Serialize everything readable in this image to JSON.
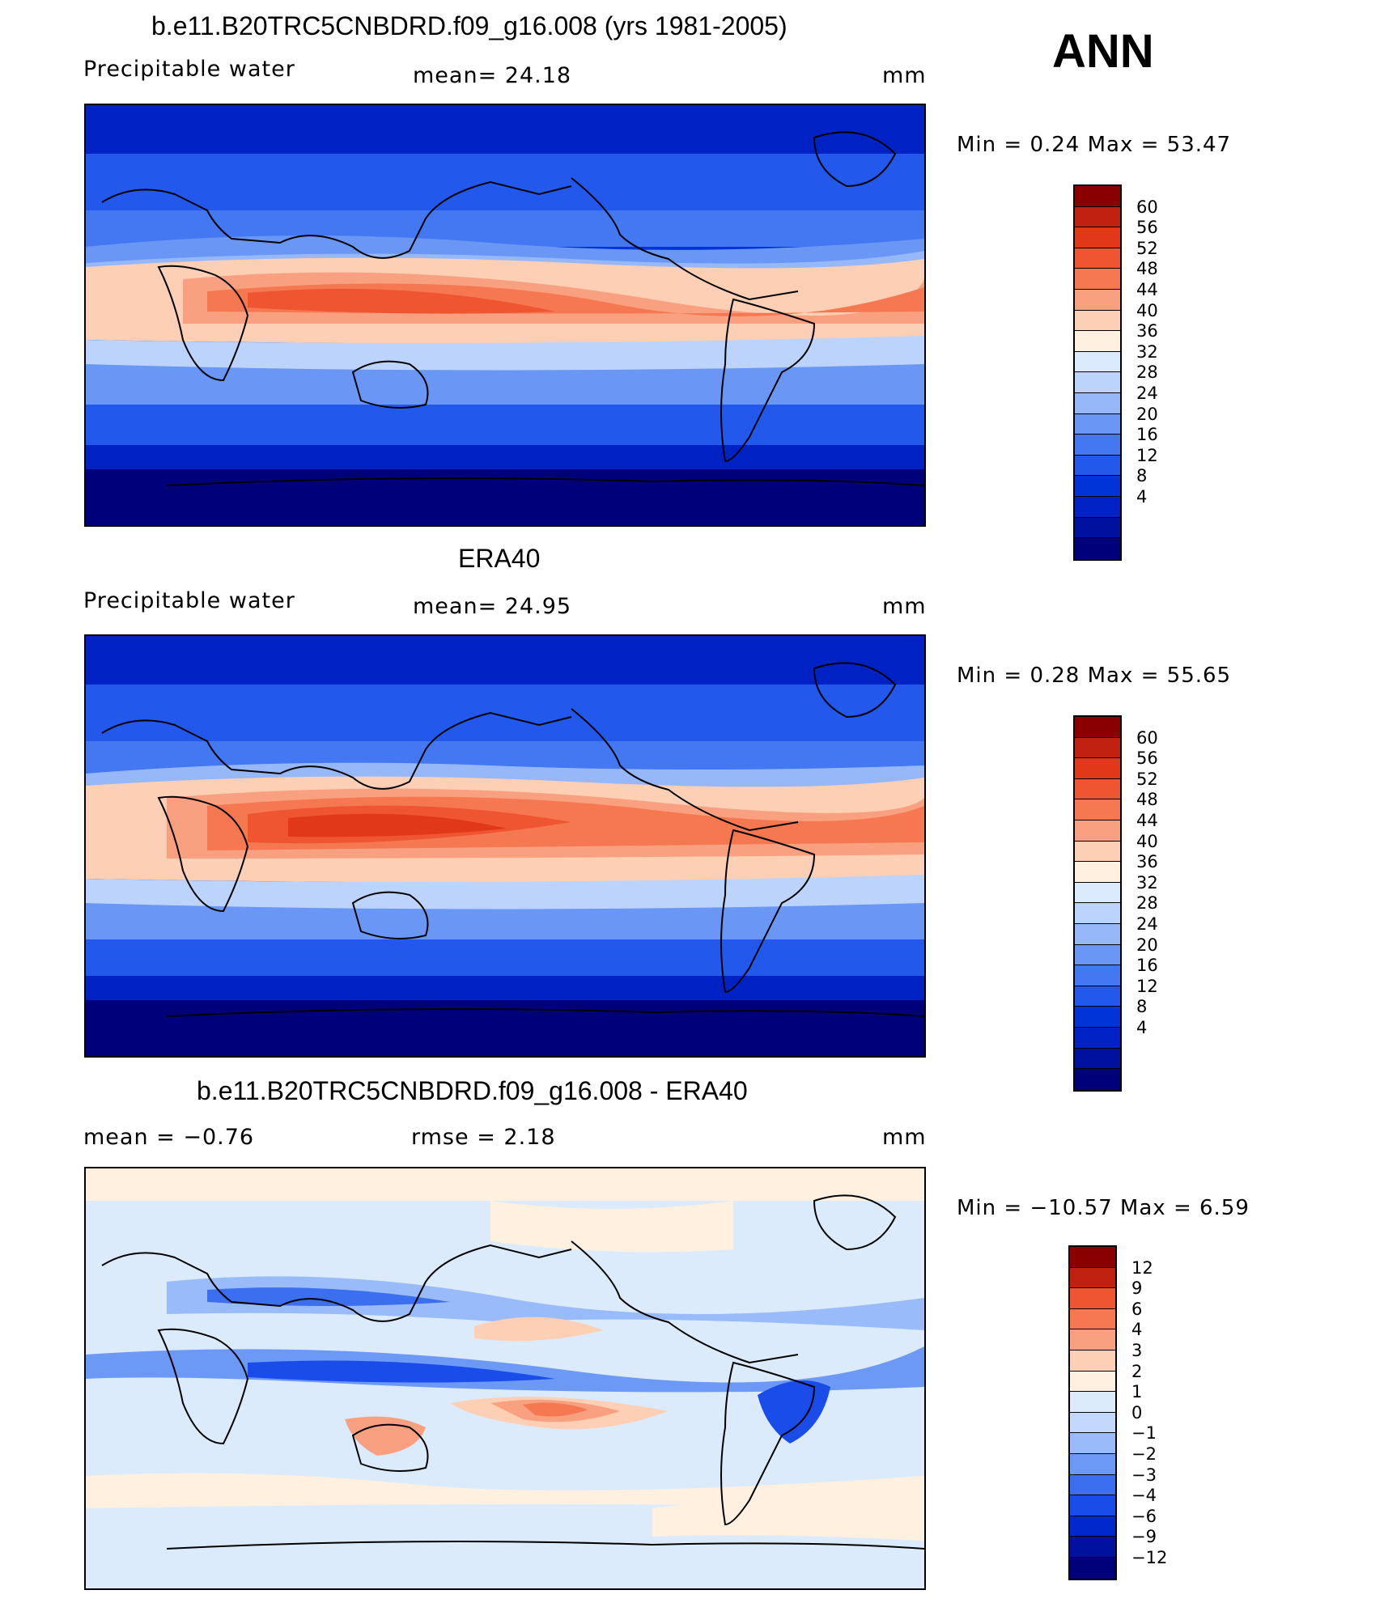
{
  "season": "ANN",
  "palette": {
    "abs": [
      "#00007a",
      "#0011a0",
      "#0022c4",
      "#0033d8",
      "#2258ec",
      "#4477f2",
      "#6a97f6",
      "#96b8f8",
      "#bcd4fb",
      "#dbe9fc",
      "#fff0e0",
      "#fdd0b6",
      "#f9a080",
      "#f57850",
      "#ef5530",
      "#e03818",
      "#c02010",
      "#8a0000"
    ],
    "diff": [
      "#00007a",
      "#0011a0",
      "#0028cc",
      "#1a4cea",
      "#3c6ff0",
      "#6c98f6",
      "#99bbf9",
      "#c2d8fc",
      "#dcebfc",
      "#fff0e0",
      "#fdd0b6",
      "#f9a080",
      "#f57850",
      "#ef5530",
      "#c02010",
      "#8a0000"
    ]
  },
  "panels": [
    {
      "title": "b.e11.B20TRC5CNBDRD.f09_g16.008 (yrs 1981-2005)",
      "left_label": "Precipitable  water",
      "center_label": "mean=   24.18",
      "units": "mm",
      "minmax": "Min  =      0.24  Max  =    53.47",
      "colorbar_labels": [
        "60",
        "56",
        "52",
        "48",
        "44",
        "40",
        "36",
        "32",
        "28",
        "24",
        "20",
        "16",
        "12",
        "8",
        "4"
      ]
    },
    {
      "title": "ERA40",
      "left_label": "Precipitable  water",
      "center_label": "mean=   24.95",
      "units": "mm",
      "minmax": "Min  =      0.28  Max  =    55.65",
      "colorbar_labels": [
        "60",
        "56",
        "52",
        "48",
        "44",
        "40",
        "36",
        "32",
        "28",
        "24",
        "20",
        "16",
        "12",
        "8",
        "4"
      ]
    },
    {
      "title": "b.e11.B20TRC5CNBDRD.f09_g16.008 - ERA40",
      "left_label": "mean  =    −0.76",
      "center_label": "rmse  =     2.18",
      "units": "mm",
      "minmax": "Min  =  −10.57  Max  =      6.59",
      "colorbar_labels": [
        "12",
        "9",
        "6",
        "4",
        "3",
        "2",
        "1",
        "0",
        "−1",
        "−2",
        "−3",
        "−4",
        "−6",
        "−9",
        "−12"
      ]
    }
  ]
}
